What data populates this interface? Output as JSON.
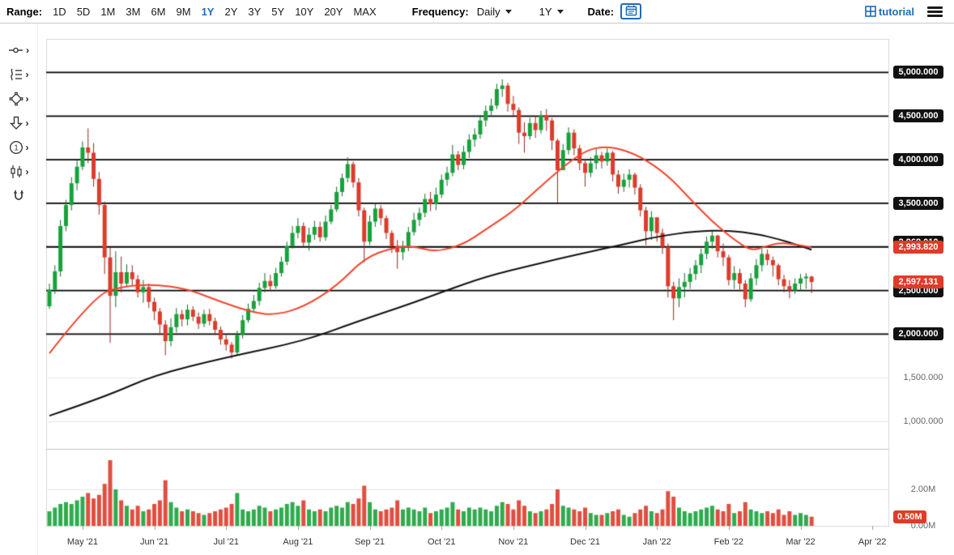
{
  "toolbar": {
    "range_label": "Range:",
    "ranges": [
      "1D",
      "5D",
      "1M",
      "3M",
      "6M",
      "9M",
      "1Y",
      "2Y",
      "3Y",
      "5Y",
      "10Y",
      "20Y",
      "MAX"
    ],
    "active_range": "1Y",
    "frequency_label": "Frequency:",
    "frequency_value": "Daily",
    "period_value": "1Y",
    "date_label": "Date:",
    "brand": "tutorial"
  },
  "sidebar": {
    "tools": [
      {
        "name": "measure-line-tool",
        "icon": "measure",
        "chevron": true
      },
      {
        "name": "fibonacci-tool",
        "icon": "fib",
        "chevron": true
      },
      {
        "name": "shape-tool",
        "icon": "shapes",
        "chevron": true
      },
      {
        "name": "arrow-tool",
        "icon": "arrow",
        "chevron": true
      },
      {
        "name": "annotation-number-tool",
        "icon": "number",
        "chevron": true
      },
      {
        "name": "chart-pattern-tool",
        "icon": "chart",
        "chevron": true
      },
      {
        "name": "magnet-tool",
        "icon": "magnet",
        "chevron": false
      }
    ]
  },
  "chart_data": {
    "type": "candlestick",
    "frequency": "Daily",
    "range": "1Y",
    "x_labels": [
      "May '21",
      "Jun '21",
      "Jul '21",
      "Aug '21",
      "Sep '21",
      "Oct '21",
      "Nov '21",
      "Dec '21",
      "Jan '22",
      "Feb '22",
      "Mar '22",
      "Apr '22"
    ],
    "ylim": [
      685,
      5385
    ],
    "volume_ylim": [
      0,
      4
    ],
    "level_lines": [
      {
        "price": 5000,
        "label": "5,000.000"
      },
      {
        "price": 4500,
        "label": "4,500.000"
      },
      {
        "price": 4000,
        "label": "4,000.000"
      },
      {
        "price": 3500,
        "label": "3,500.000"
      },
      {
        "price": 3000,
        "label": "3,000.000"
      },
      {
        "price": 2500,
        "label": "2,500.000"
      },
      {
        "price": 2000,
        "label": "2,000.000"
      }
    ],
    "plain_price_labels": [
      {
        "price": 1500,
        "label": "1,500.000"
      },
      {
        "price": 1000,
        "label": "1,000.000"
      }
    ],
    "volume_axis_labels": [
      {
        "value": 2,
        "label": "2.00M"
      },
      {
        "value": 0,
        "label": "0.00M"
      }
    ],
    "last_values": {
      "black_ma": {
        "value": 2968.01,
        "label": "2,968.010",
        "color": "black"
      },
      "red_ma": {
        "value": 2993.82,
        "label": "2,993.820",
        "color": "red"
      },
      "price": {
        "value": 2597.131,
        "label": "2,597.131",
        "color": "red"
      },
      "volume": {
        "value": 0.5,
        "label": "0.50M",
        "color": "red"
      }
    },
    "colors": {
      "up": "#17a23b",
      "down": "#dd3b2b",
      "red_line": "#f4432c",
      "black_line": "#111111",
      "level_line": "#000000",
      "badge_black": "#111111",
      "badge_red": "#e03b28",
      "accent_blue": "#1f6cb5"
    },
    "series": {
      "first_open": 2320,
      "candles": [
        [
          2510,
          2580,
          2290
        ],
        [
          2720,
          2790,
          2460
        ],
        [
          3240,
          3310,
          2660
        ],
        [
          3480,
          3540,
          3180
        ],
        [
          3730,
          3800,
          3420
        ],
        [
          3920,
          3990,
          3650
        ],
        [
          4140,
          4210,
          3880
        ],
        [
          4080,
          4360,
          3960
        ],
        [
          3780,
          4190,
          3690
        ],
        [
          3480,
          3860,
          3370
        ],
        [
          2880,
          3520,
          2690
        ],
        [
          2440,
          2990,
          1900
        ],
        [
          2710,
          2950,
          2310
        ],
        [
          2580,
          2890,
          2480
        ],
        [
          2710,
          2800,
          2540
        ],
        [
          2630,
          2790,
          2560
        ],
        [
          2480,
          2680,
          2420
        ],
        [
          2540,
          2620,
          2360
        ],
        [
          2370,
          2580,
          2300
        ],
        [
          2260,
          2420,
          2160
        ],
        [
          2110,
          2300,
          1990
        ],
        [
          1920,
          2160,
          1760
        ],
        [
          2080,
          2180,
          1860
        ],
        [
          2230,
          2300,
          2020
        ],
        [
          2170,
          2280,
          2090
        ],
        [
          2280,
          2340,
          2100
        ],
        [
          2200,
          2320,
          2150
        ],
        [
          2120,
          2250,
          2060
        ],
        [
          2230,
          2280,
          2080
        ],
        [
          2150,
          2290,
          2100
        ],
        [
          2050,
          2190,
          1990
        ],
        [
          1940,
          2090,
          1880
        ],
        [
          1880,
          1990,
          1810
        ],
        [
          1790,
          1910,
          1720
        ],
        [
          1990,
          2040,
          1760
        ],
        [
          2160,
          2220,
          1950
        ],
        [
          2290,
          2350,
          2130
        ],
        [
          2380,
          2450,
          2250
        ],
        [
          2530,
          2590,
          2330
        ],
        [
          2610,
          2700,
          2480
        ],
        [
          2550,
          2680,
          2500
        ],
        [
          2700,
          2760,
          2520
        ],
        [
          2830,
          2890,
          2660
        ],
        [
          3010,
          3060,
          2790
        ],
        [
          3160,
          3240,
          2980
        ],
        [
          3240,
          3330,
          3100
        ],
        [
          3050,
          3280,
          3000
        ],
        [
          3140,
          3220,
          2960
        ],
        [
          3230,
          3300,
          3080
        ],
        [
          3110,
          3290,
          3060
        ],
        [
          3290,
          3360,
          3070
        ],
        [
          3430,
          3480,
          3260
        ],
        [
          3630,
          3690,
          3400
        ],
        [
          3790,
          3840,
          3580
        ],
        [
          3950,
          4030,
          3740
        ],
        [
          3740,
          3980,
          3680
        ],
        [
          3420,
          3790,
          3350
        ],
        [
          3060,
          3450,
          2820
        ],
        [
          3290,
          3360,
          3020
        ],
        [
          3440,
          3500,
          3230
        ],
        [
          3330,
          3480,
          3250
        ],
        [
          3160,
          3360,
          3090
        ],
        [
          3010,
          3190,
          2930
        ],
        [
          2940,
          3080,
          2750
        ],
        [
          3010,
          3070,
          2850
        ],
        [
          3170,
          3230,
          2950
        ],
        [
          3310,
          3390,
          3130
        ],
        [
          3390,
          3450,
          3240
        ],
        [
          3550,
          3610,
          3340
        ],
        [
          3490,
          3630,
          3410
        ],
        [
          3600,
          3680,
          3420
        ],
        [
          3770,
          3830,
          3560
        ],
        [
          3850,
          3920,
          3700
        ],
        [
          4060,
          4170,
          3810
        ],
        [
          3940,
          4100,
          3880
        ],
        [
          4090,
          4160,
          3890
        ],
        [
          4230,
          4290,
          4020
        ],
        [
          4290,
          4360,
          4150
        ],
        [
          4450,
          4510,
          4240
        ],
        [
          4560,
          4620,
          4380
        ],
        [
          4620,
          4700,
          4500
        ],
        [
          4810,
          4870,
          4580
        ],
        [
          4850,
          4920,
          4720
        ],
        [
          4640,
          4880,
          4550
        ],
        [
          4570,
          4730,
          4500
        ],
        [
          4310,
          4600,
          4180
        ],
        [
          4270,
          4430,
          4080
        ],
        [
          4420,
          4480,
          4230
        ],
        [
          4340,
          4500,
          4250
        ],
        [
          4510,
          4560,
          4300
        ],
        [
          4450,
          4580,
          4330
        ],
        [
          4220,
          4480,
          4110
        ],
        [
          3880,
          4240,
          3510
        ],
        [
          4110,
          4180,
          3890
        ],
        [
          4310,
          4370,
          4060
        ],
        [
          4130,
          4350,
          4050
        ],
        [
          3960,
          4170,
          3880
        ],
        [
          3850,
          4000,
          3690
        ],
        [
          3960,
          4030,
          3800
        ],
        [
          4050,
          4120,
          3890
        ],
        [
          3980,
          4090,
          3900
        ],
        [
          4080,
          4130,
          3930
        ],
        [
          3830,
          4100,
          3750
        ],
        [
          3690,
          3880,
          3610
        ],
        [
          3770,
          3840,
          3630
        ],
        [
          3830,
          3890,
          3680
        ],
        [
          3680,
          3850,
          3600
        ],
        [
          3420,
          3720,
          3350
        ],
        [
          3180,
          3460,
          3020
        ],
        [
          3340,
          3410,
          3080
        ],
        [
          3160,
          3330,
          3060
        ],
        [
          3000,
          3210,
          2920
        ],
        [
          2550,
          3040,
          2420
        ],
        [
          2410,
          2600,
          2160
        ],
        [
          2540,
          2640,
          2310
        ],
        [
          2600,
          2700,
          2420
        ],
        [
          2690,
          2760,
          2520
        ],
        [
          2790,
          2850,
          2620
        ],
        [
          2920,
          2980,
          2700
        ],
        [
          3060,
          3120,
          2860
        ],
        [
          3130,
          3190,
          2980
        ],
        [
          2950,
          3140,
          2880
        ],
        [
          2880,
          3040,
          2780
        ],
        [
          2620,
          2910,
          2560
        ],
        [
          2700,
          2780,
          2520
        ],
        [
          2580,
          2750,
          2490
        ],
        [
          2400,
          2620,
          2310
        ],
        [
          2640,
          2700,
          2370
        ],
        [
          2790,
          2860,
          2560
        ],
        [
          2920,
          2980,
          2720
        ],
        [
          2850,
          2970,
          2790
        ],
        [
          2790,
          2890,
          2660
        ],
        [
          2630,
          2810,
          2560
        ],
        [
          2550,
          2680,
          2480
        ],
        [
          2500,
          2620,
          2410
        ],
        [
          2580,
          2640,
          2460
        ],
        [
          2640,
          2690,
          2500
        ],
        [
          2660,
          2700,
          2520
        ],
        [
          2597.131,
          2670,
          2470
        ]
      ],
      "volumes": [
        0.8,
        1.0,
        1.2,
        1.3,
        1.2,
        1.4,
        1.6,
        1.8,
        1.5,
        1.7,
        2.3,
        3.6,
        2.0,
        1.4,
        1.1,
        0.9,
        1.1,
        0.8,
        0.9,
        1.2,
        1.4,
        2.5,
        1.3,
        1.0,
        0.8,
        0.9,
        0.8,
        0.7,
        0.6,
        0.7,
        0.8,
        0.9,
        1.0,
        1.2,
        1.8,
        0.9,
        0.8,
        0.9,
        1.1,
        1.0,
        0.8,
        0.9,
        1.0,
        1.2,
        1.3,
        1.1,
        1.4,
        0.9,
        0.8,
        0.9,
        0.8,
        1.0,
        1.1,
        1.0,
        1.3,
        1.2,
        1.5,
        2.2,
        1.3,
        0.9,
        0.8,
        0.9,
        1.0,
        1.4,
        0.9,
        1.0,
        0.9,
        0.8,
        1.0,
        0.7,
        0.8,
        0.9,
        1.0,
        1.3,
        0.9,
        0.8,
        1.0,
        0.9,
        1.0,
        0.9,
        0.8,
        1.1,
        1.3,
        1.2,
        0.9,
        1.4,
        1.1,
        0.8,
        0.7,
        0.8,
        0.9,
        1.2,
        2.0,
        1.1,
        1.0,
        0.9,
        0.8,
        1.0,
        0.7,
        0.6,
        0.6,
        0.7,
        0.8,
        0.9,
        0.6,
        0.5,
        0.7,
        0.9,
        1.1,
        0.8,
        0.7,
        0.9,
        1.9,
        1.6,
        1.0,
        0.8,
        0.7,
        0.8,
        0.9,
        1.0,
        1.1,
        0.9,
        0.8,
        1.2,
        0.7,
        0.8,
        1.3,
        0.9,
        0.8,
        0.7,
        0.8,
        0.7,
        0.9,
        0.6,
        0.8,
        0.6,
        0.7,
        0.6,
        0.5
      ],
      "red_ma_keypoints": [
        [
          0,
          1780
        ],
        [
          8,
          2430
        ],
        [
          13,
          2550
        ],
        [
          19,
          2570
        ],
        [
          25,
          2520
        ],
        [
          31,
          2370
        ],
        [
          37,
          2245
        ],
        [
          41,
          2220
        ],
        [
          46,
          2310
        ],
        [
          52,
          2550
        ],
        [
          57,
          2870
        ],
        [
          62,
          2990
        ],
        [
          66,
          3010
        ],
        [
          70,
          2940
        ],
        [
          75,
          3030
        ],
        [
          79,
          3200
        ],
        [
          84,
          3410
        ],
        [
          88,
          3640
        ],
        [
          93,
          3920
        ],
        [
          97,
          4100
        ],
        [
          100,
          4150
        ],
        [
          103,
          4130
        ],
        [
          107,
          4040
        ],
        [
          112,
          3820
        ],
        [
          116,
          3550
        ],
        [
          120,
          3290
        ],
        [
          124,
          3080
        ],
        [
          127,
          2960
        ],
        [
          129,
          2990
        ],
        [
          132,
          3050
        ],
        [
          135,
          3030
        ],
        [
          138,
          2993.82
        ]
      ],
      "black_ma_keypoints": [
        [
          0,
          1065
        ],
        [
          10,
          1280
        ],
        [
          19,
          1530
        ],
        [
          32,
          1734
        ],
        [
          46,
          1920
        ],
        [
          56,
          2150
        ],
        [
          65,
          2340
        ],
        [
          71,
          2480
        ],
        [
          79,
          2660
        ],
        [
          88,
          2800
        ],
        [
          96,
          2920
        ],
        [
          104,
          3030
        ],
        [
          110,
          3120
        ],
        [
          117,
          3180
        ],
        [
          123,
          3190
        ],
        [
          128,
          3150
        ],
        [
          132,
          3090
        ],
        [
          135,
          3030
        ],
        [
          138,
          2968.01
        ]
      ]
    }
  }
}
